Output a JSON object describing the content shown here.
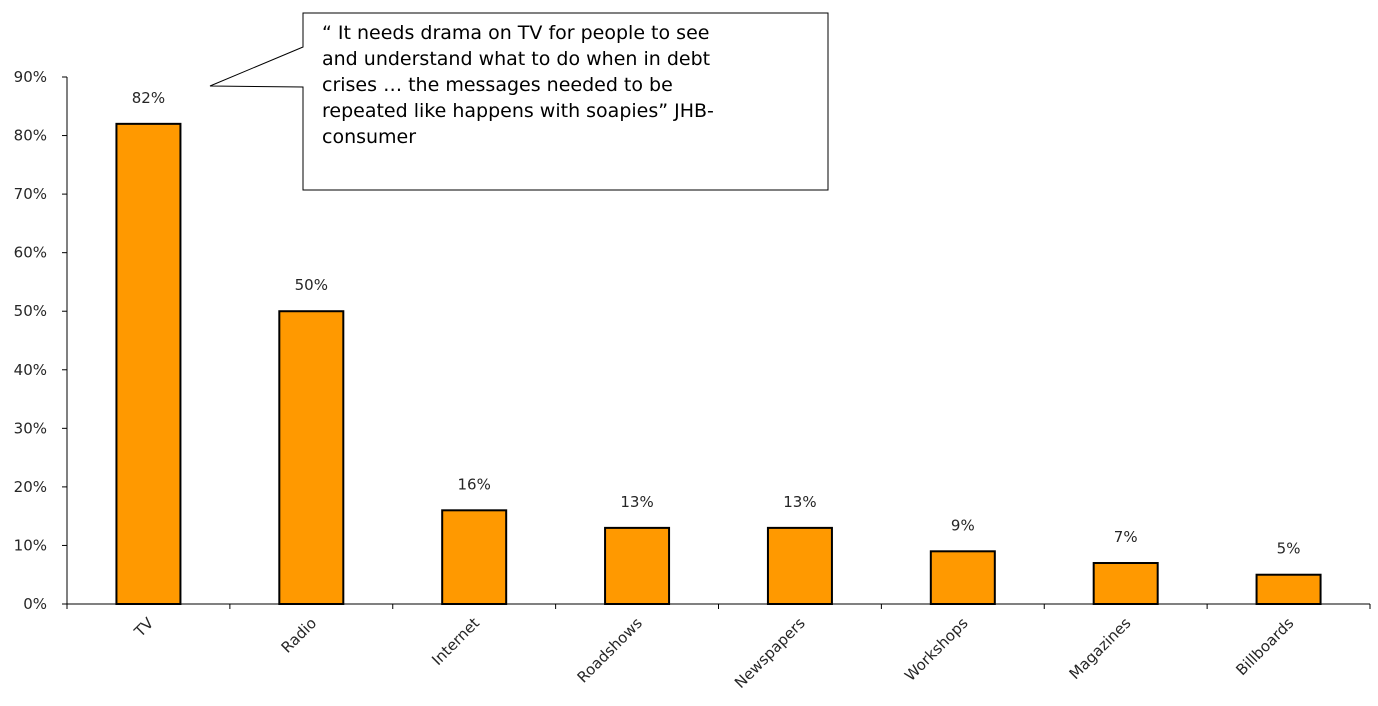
{
  "chart_data": {
    "type": "bar",
    "categories": [
      "TV",
      "Radio",
      "Internet",
      "Roadshows",
      "Newspapers",
      "Workshops",
      "Magazines",
      "Billboards"
    ],
    "values": [
      82,
      50,
      16,
      13,
      13,
      9,
      7,
      5
    ],
    "data_labels": [
      "82%",
      "50%",
      "16%",
      "13%",
      "13%",
      "9%",
      "7%",
      "5%"
    ],
    "y_ticks": [
      0,
      10,
      20,
      30,
      40,
      50,
      60,
      70,
      80,
      90
    ],
    "y_tick_labels": [
      "0%",
      "10%",
      "20%",
      "30%",
      "40%",
      "50%",
      "60%",
      "70%",
      "80%",
      "90%"
    ],
    "ylim": [
      0,
      90
    ],
    "grid": false,
    "legend": "none",
    "bar_color": "#FF9900",
    "bar_edge_color": "#000000"
  },
  "callout": {
    "text": "“ It needs drama on TV for people to see\nand understand what to do when in debt\ncrises … the messages needed to be\nrepeated like happens with soapies” JHB-\nconsumer"
  }
}
